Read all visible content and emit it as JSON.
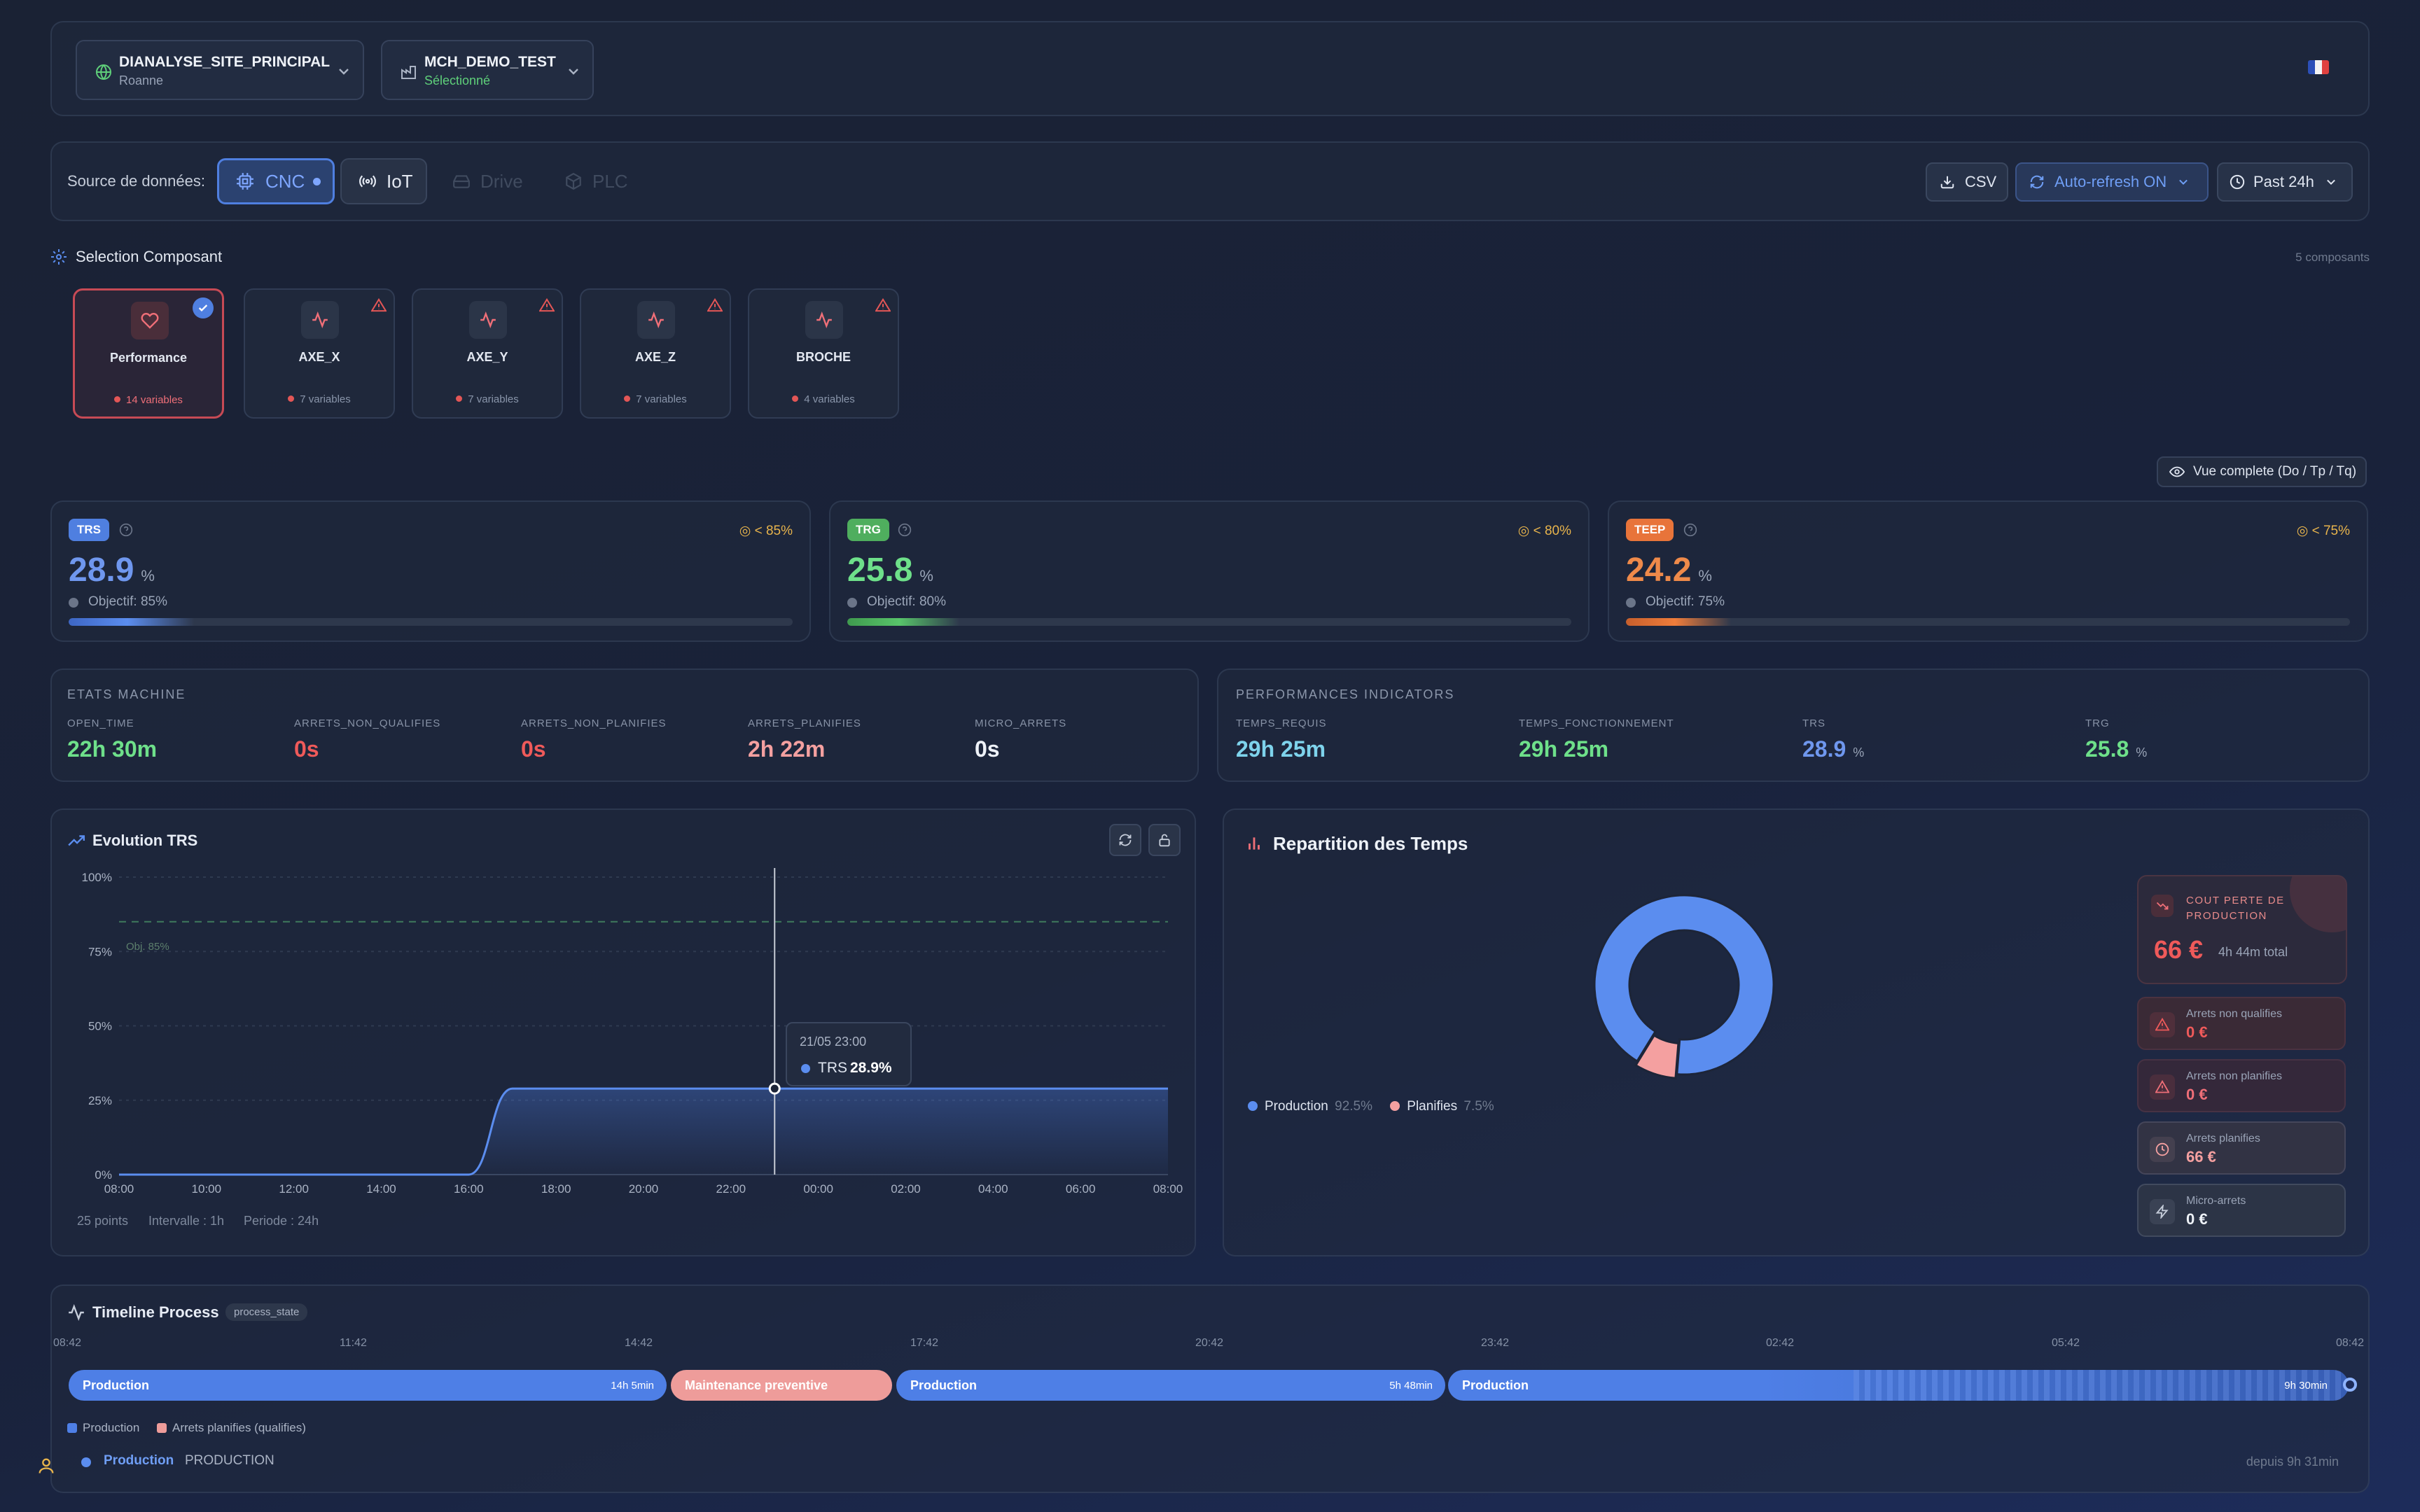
{
  "header": {
    "site": {
      "name": "DIANALYSE_SITE_PRINCIPAL",
      "location": "Roanne"
    },
    "machine": {
      "name": "MCH_DEMO_TEST",
      "status": "Sélectionné"
    },
    "flag": "🇫🇷"
  },
  "source_bar": {
    "label": "Source de données:",
    "sources": [
      "CNC",
      "IoT",
      "Drive",
      "PLC"
    ],
    "csv": "CSV",
    "auto_refresh": "Auto-refresh ON",
    "period": "Past 24h"
  },
  "components": {
    "title": "Selection Composant",
    "count": "5 composants",
    "items": [
      {
        "name": "Performance",
        "vars": "14 variables",
        "selected": true
      },
      {
        "name": "AXE_X",
        "vars": "7 variables"
      },
      {
        "name": "AXE_Y",
        "vars": "7 variables"
      },
      {
        "name": "AXE_Z",
        "vars": "7 variables"
      },
      {
        "name": "BROCHE",
        "vars": "4 variables"
      }
    ]
  },
  "view_button": "Vue complete (Do / Tp / Tq)",
  "kpis": [
    {
      "badge": "TRS",
      "value": "28.9",
      "unit": "%",
      "objective": "Objectif: 85%",
      "threshold": "< 85%",
      "progress": 0.289,
      "color": "#5b8def"
    },
    {
      "badge": "TRG",
      "value": "25.8",
      "unit": "%",
      "objective": "Objectif: 80%",
      "threshold": "< 80%",
      "progress": 0.258,
      "color": "#58c46a"
    },
    {
      "badge": "TEEP",
      "value": "24.2",
      "unit": "%",
      "objective": "Objectif: 75%",
      "threshold": "< 75%",
      "progress": 0.242,
      "color": "#ef7d3b"
    }
  ],
  "machine_states": {
    "title": "ETATS MACHINE",
    "items": [
      {
        "label": "OPEN_TIME",
        "value": "22h 30m",
        "color": "#6ee08a"
      },
      {
        "label": "ARRETS_NON_QUALIFIES",
        "value": "0s",
        "color": "#ef5a5a"
      },
      {
        "label": "ARRETS_NON_PLANIFIES",
        "value": "0s",
        "color": "#ef5a5a"
      },
      {
        "label": "ARRETS_PLANIFIES",
        "value": "2h 22m",
        "color": "#f4a0a0"
      },
      {
        "label": "MICRO_ARRETS",
        "value": "0s",
        "color": "#eef2f8"
      }
    ]
  },
  "performance_indicators": {
    "title": "PERFORMANCES INDICATORS",
    "items": [
      {
        "label": "TEMPS_REQUIS",
        "value": "29h 25m",
        "unit": "",
        "color": "#7ed3ec"
      },
      {
        "label": "TEMPS_FONCTIONNEMENT",
        "value": "29h 25m",
        "unit": "",
        "color": "#6ee08a"
      },
      {
        "label": "TRS",
        "value": "28.9",
        "unit": "%",
        "color": "#6f97ee"
      },
      {
        "label": "TRG",
        "value": "25.8",
        "unit": "%",
        "color": "#6ee08a"
      }
    ]
  },
  "evolution": {
    "title": "Evolution TRS",
    "objective_label": "Obj. 85%",
    "tooltip": {
      "date": "21/05 23:00",
      "series": "TRS",
      "value": "28.9%"
    },
    "footer": [
      "25 points",
      "Intervalle : 1h",
      "Periode : 24h"
    ]
  },
  "chart_data": {
    "type": "area",
    "title": "Evolution TRS",
    "x": [
      "08:00",
      "09:00",
      "10:00",
      "11:00",
      "12:00",
      "13:00",
      "14:00",
      "15:00",
      "16:00",
      "17:00",
      "18:00",
      "19:00",
      "20:00",
      "21:00",
      "22:00",
      "23:00",
      "00:00",
      "01:00",
      "02:00",
      "03:00",
      "04:00",
      "05:00",
      "06:00",
      "07:00",
      "08:00"
    ],
    "x_ticks": [
      "08:00",
      "10:00",
      "12:00",
      "14:00",
      "16:00",
      "18:00",
      "20:00",
      "22:00",
      "00:00",
      "02:00",
      "04:00",
      "06:00",
      "08:00"
    ],
    "series": [
      {
        "name": "TRS",
        "values": [
          0,
          0,
          0,
          0,
          0,
          0,
          0,
          0,
          0,
          28.9,
          28.9,
          28.9,
          28.9,
          28.9,
          28.9,
          28.9,
          28.9,
          28.9,
          28.9,
          28.9,
          28.9,
          28.9,
          28.9,
          28.9,
          28.9
        ]
      }
    ],
    "y_ticks": [
      "0%",
      "25%",
      "50%",
      "75%",
      "100%"
    ],
    "ylim": [
      0,
      100
    ],
    "objective": 85,
    "grid": true,
    "color": "#5b8def"
  },
  "repartition": {
    "title": "Repartition des Temps",
    "donut": [
      {
        "name": "Production",
        "pct": "92.5%",
        "value": 92.5,
        "color": "#5b8def"
      },
      {
        "name": "Planifies",
        "pct": "7.5%",
        "value": 7.5,
        "color": "#f4a0a0"
      }
    ],
    "loss": {
      "title": "COUT PERTE DE PRODUCTION",
      "value": "66 €",
      "sub": "4h 44m total"
    },
    "cards": [
      {
        "label": "Arrets non qualifies",
        "value": "0 €"
      },
      {
        "label": "Arrets non planifies",
        "value": "0 €"
      },
      {
        "label": "Arrets planifies",
        "value": "66 €"
      },
      {
        "label": "Micro-arrets",
        "value": "0 €"
      }
    ]
  },
  "timeline": {
    "title": "Timeline Process",
    "tag": "process_state",
    "ticks": [
      "08:42",
      "11:42",
      "14:42",
      "17:42",
      "20:42",
      "23:42",
      "02:42",
      "05:42",
      "08:42"
    ],
    "segments": [
      {
        "label": "Production",
        "duration": "14h 5min"
      },
      {
        "label": "Maintenance preventive",
        "duration": ""
      },
      {
        "label": "Production",
        "duration": "5h 48min"
      },
      {
        "label": "Production",
        "duration": "9h 30min"
      }
    ],
    "legend": [
      "Production",
      "Arrets planifies (qualifies)"
    ],
    "status": {
      "label": "Production",
      "state": "PRODUCTION",
      "since": "depuis 9h 31min"
    }
  }
}
